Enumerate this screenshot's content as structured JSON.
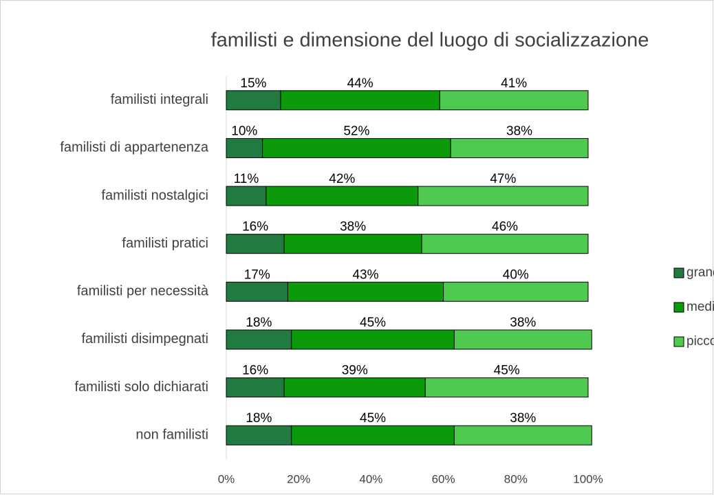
{
  "chart_data": {
    "type": "stacked_bar_horizontal",
    "title": "familisti e dimensione del luogo di socializzazione",
    "categories": [
      "familisti integrali",
      "familisti di appartenenza",
      "familisti nostalgici",
      "familisti pratici",
      "familisti per necessità",
      "familisti disimpegnati",
      "familisti solo dichiarati",
      "non familisti"
    ],
    "series": [
      {
        "name": "grande",
        "color": "#217a3f",
        "values": [
          15,
          10,
          11,
          16,
          17,
          18,
          16,
          18
        ],
        "value_labels": [
          "15%",
          "10%",
          "11%",
          "16%",
          "17%",
          "18%",
          "16%",
          "18%"
        ]
      },
      {
        "name": "medio",
        "color": "#0a9a0a",
        "values": [
          44,
          52,
          42,
          38,
          43,
          45,
          39,
          45
        ],
        "value_labels": [
          "44%",
          "52%",
          "42%",
          "38%",
          "43%",
          "45%",
          "39%",
          "45%"
        ]
      },
      {
        "name": "piccolo",
        "color": "#4fc94f",
        "values": [
          41,
          38,
          47,
          46,
          40,
          38,
          45,
          38
        ],
        "value_labels": [
          "41%",
          "38%",
          "47%",
          "46%",
          "40%",
          "38%",
          "45%",
          "38%"
        ]
      }
    ],
    "xlim": [
      0,
      100
    ],
    "xticks": [
      {
        "value": 0,
        "label": "0%"
      },
      {
        "value": 20,
        "label": "20%"
      },
      {
        "value": 40,
        "label": "40%"
      },
      {
        "value": 60,
        "label": "60%"
      },
      {
        "value": 80,
        "label": "80%"
      },
      {
        "value": 100,
        "label": "100%"
      }
    ],
    "legend": "right"
  }
}
